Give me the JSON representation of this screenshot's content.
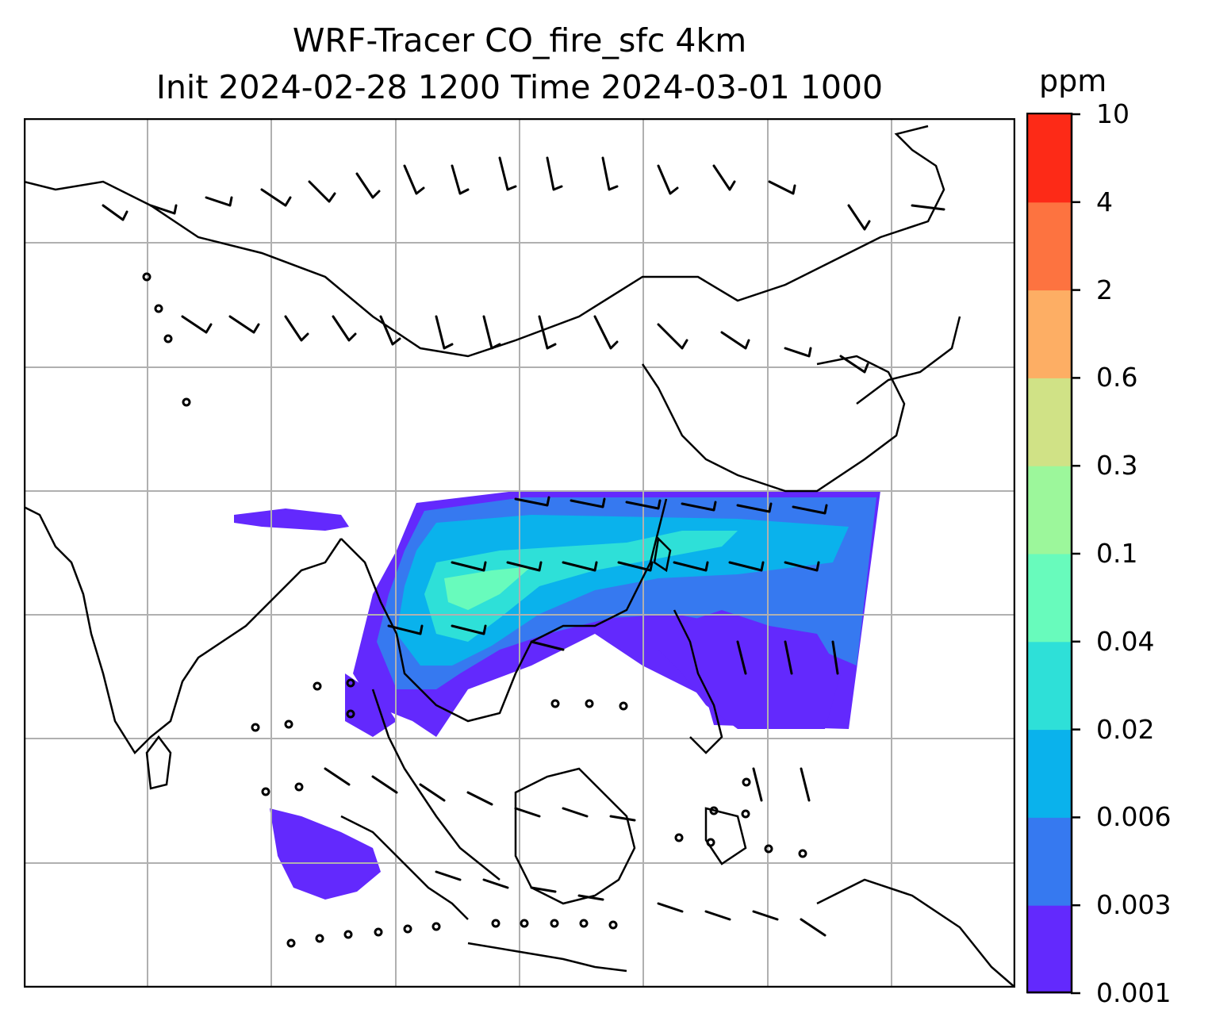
{
  "title": {
    "line1": "WRF-Tracer CO_fire_sfc 4km",
    "line2": "Init 2024-02-28 1200 Time 2024-03-01 1000"
  },
  "colorbar": {
    "unit": "ppm",
    "levels": [
      "0.001",
      "0.003",
      "0.006",
      "0.02",
      "0.04",
      "0.1",
      "0.3",
      "0.6",
      "2",
      "4",
      "10"
    ],
    "colors": [
      "#6329fd",
      "#3679f0",
      "#0ab2ec",
      "#2ee0d8",
      "#68fbbc",
      "#9cf79b",
      "#d0e286",
      "#fdae64",
      "#fd7340",
      "#fd2a17"
    ]
  },
  "map": {
    "gridlines": true,
    "wind_barbs": true,
    "coastlines": true
  }
}
